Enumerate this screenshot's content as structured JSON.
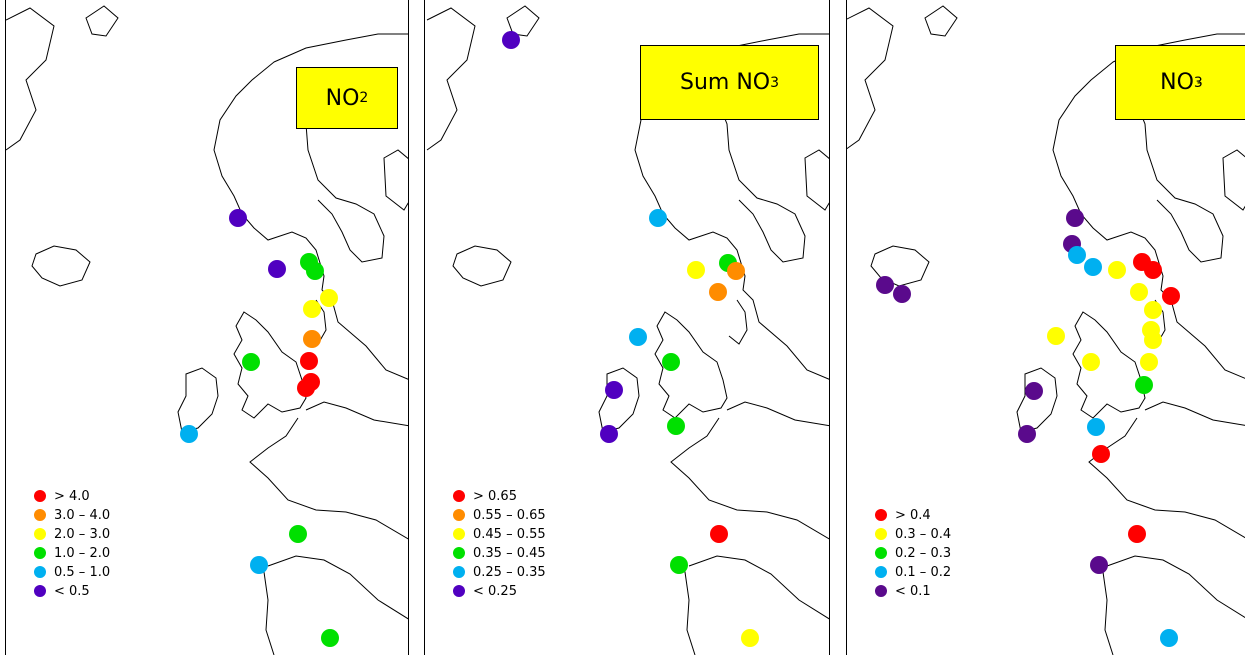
{
  "panels": [
    {
      "title_main": "NO",
      "title_sub": "2",
      "title_sup": "",
      "legend": [
        {
          "label": "> 4.0",
          "color": "#ff0000"
        },
        {
          "label": "3.0 – 4.0",
          "color": "#ff8c00"
        },
        {
          "label": "2.0 – 3.0",
          "color": "#ffff00"
        },
        {
          "label": "1.0 – 2.0",
          "color": "#00e000"
        },
        {
          "label": "0.5 – 1.0",
          "color": "#00b0f0"
        },
        {
          "label": "< 0.5",
          "color": "#5000c0"
        }
      ],
      "stations": [
        {
          "class": "< 0.5",
          "color": "#5000c0"
        },
        {
          "class": "< 0.5",
          "color": "#5000c0"
        },
        {
          "class": "1.0 – 2.0",
          "color": "#00e000"
        },
        {
          "class": "1.0 – 2.0",
          "color": "#00e000"
        },
        {
          "class": "2.0 – 3.0",
          "color": "#ffff00"
        },
        {
          "class": "2.0 – 3.0",
          "color": "#ffff00"
        },
        {
          "class": "3.0 – 4.0",
          "color": "#ff8c00"
        },
        {
          "class": "> 4.0",
          "color": "#ff0000"
        },
        {
          "class": "> 4.0",
          "color": "#ff0000"
        },
        {
          "class": "> 4.0",
          "color": "#ff0000"
        },
        {
          "class": "1.0 – 2.0",
          "color": "#00e000"
        },
        {
          "class": "0.5 – 1.0",
          "color": "#00b0f0"
        },
        {
          "class": "1.0 – 2.0",
          "color": "#00e000"
        },
        {
          "class": "0.5 – 1.0",
          "color": "#00b0f0"
        },
        {
          "class": "1.0 – 2.0",
          "color": "#00e000"
        }
      ]
    },
    {
      "title_main": "Sum NO",
      "title_sub": "3",
      "title_sup": "",
      "legend": [
        {
          "label": "> 0.65",
          "color": "#ff0000"
        },
        {
          "label": "0.55 – 0.65",
          "color": "#ff8c00"
        },
        {
          "label": "0.45 – 0.55",
          "color": "#ffff00"
        },
        {
          "label": "0.35 – 0.45",
          "color": "#00e000"
        },
        {
          "label": "0.25 – 0.35",
          "color": "#00b0f0"
        },
        {
          "label": "< 0.25",
          "color": "#5000c0"
        }
      ],
      "stations": [
        {
          "class": "< 0.25",
          "color": "#5000c0"
        },
        {
          "class": "0.25 – 0.35",
          "color": "#00b0f0"
        },
        {
          "class": "0.45 – 0.55",
          "color": "#ffff00"
        },
        {
          "class": "0.35 – 0.45",
          "color": "#00e000"
        },
        {
          "class": "0.55 – 0.65",
          "color": "#ff8c00"
        },
        {
          "class": "0.55 – 0.65",
          "color": "#ff8c00"
        },
        {
          "class": "0.25 – 0.35",
          "color": "#00b0f0"
        },
        {
          "class": "0.35 – 0.45",
          "color": "#00e000"
        },
        {
          "class": "< 0.25",
          "color": "#5000c0"
        },
        {
          "class": "< 0.25",
          "color": "#5000c0"
        },
        {
          "class": "0.35 – 0.45",
          "color": "#00e000"
        },
        {
          "class": "> 0.65",
          "color": "#ff0000"
        },
        {
          "class": "0.35 – 0.45",
          "color": "#00e000"
        },
        {
          "class": "0.45 – 0.55",
          "color": "#ffff00"
        }
      ]
    },
    {
      "title_main": "NO",
      "title_sub": "3",
      "title_sup": "-",
      "legend": [
        {
          "label": "> 0.4",
          "color": "#ff0000"
        },
        {
          "label": "0.3 – 0.4",
          "color": "#ffff00"
        },
        {
          "label": "0.2 – 0.3",
          "color": "#00e000"
        },
        {
          "label": "0.1 – 0.2",
          "color": "#00b0f0"
        },
        {
          "label": "< 0.1",
          "color": "#5a0a8c"
        }
      ],
      "stations": [
        {
          "class": "< 0.1",
          "color": "#5a0a8c"
        },
        {
          "class": "< 0.1",
          "color": "#5a0a8c"
        },
        {
          "class": "0.1 – 0.2",
          "color": "#00b0f0"
        },
        {
          "class": "0.1 – 0.2",
          "color": "#00b0f0"
        },
        {
          "class": "0.3 – 0.4",
          "color": "#ffff00"
        },
        {
          "class": "> 0.4",
          "color": "#ff0000"
        },
        {
          "class": "> 0.4",
          "color": "#ff0000"
        },
        {
          "class": "> 0.4",
          "color": "#ff0000"
        },
        {
          "class": "0.3 – 0.4",
          "color": "#ffff00"
        },
        {
          "class": "0.3 – 0.4",
          "color": "#ffff00"
        },
        {
          "class": "0.3 – 0.4",
          "color": "#ffff00"
        },
        {
          "class": "0.3 – 0.4",
          "color": "#ffff00"
        },
        {
          "class": "0.3 – 0.4",
          "color": "#ffff00"
        },
        {
          "class": "0.3 – 0.4",
          "color": "#ffff00"
        },
        {
          "class": "0.3 – 0.4",
          "color": "#ffff00"
        },
        {
          "class": "0.2 – 0.3",
          "color": "#00e000"
        },
        {
          "class": "0.1 – 0.2",
          "color": "#00b0f0"
        },
        {
          "class": "< 0.1",
          "color": "#5a0a8c"
        },
        {
          "class": "< 0.1",
          "color": "#5a0a8c"
        },
        {
          "class": "< 0.1",
          "color": "#5a0a8c"
        },
        {
          "class": "< 0.1",
          "color": "#5a0a8c"
        },
        {
          "class": "> 0.4",
          "color": "#ff0000"
        },
        {
          "class": "> 0.4",
          "color": "#ff0000"
        },
        {
          "class": "< 0.1",
          "color": "#5a0a8c"
        },
        {
          "class": "0.1 – 0.2",
          "color": "#00b0f0"
        }
      ]
    }
  ]
}
